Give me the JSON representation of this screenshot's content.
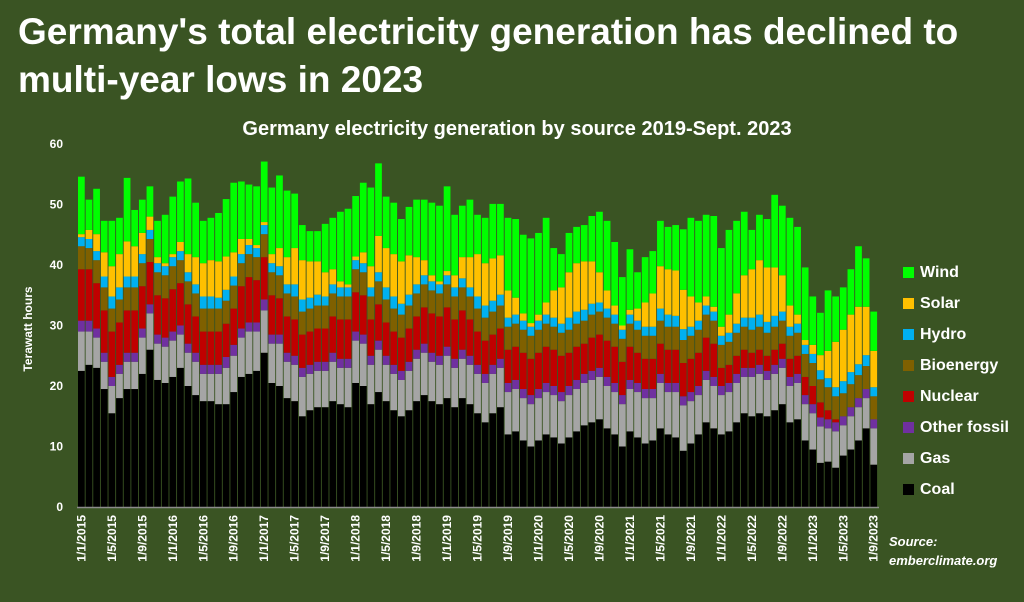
{
  "headline": "Germany's total electricity generation has declined to multi-year lows in 2023",
  "source": {
    "line1": "Source:",
    "line2": "emberclimate.org"
  },
  "chart_data": {
    "type": "bar",
    "stacked": true,
    "title": "Germany electricity generation by source 2019-Sept. 2023",
    "xlabel": "",
    "ylabel": "Terawatt hours",
    "ylim": [
      0,
      60
    ],
    "yticks": [
      0,
      10,
      20,
      30,
      40,
      50,
      60
    ],
    "xtick_labels": [
      "1/1/2015",
      "1/5/2015",
      "1/9/2015",
      "1/1/2016",
      "1/5/2016",
      "1/9/2016",
      "1/1/2017",
      "1/5/2017",
      "1/9/2017",
      "1/1/2018",
      "1/5/2018",
      "1/9/2018",
      "1/1/2019",
      "1/5/2019",
      "1/9/2019",
      "1/1/2020",
      "1/5/2020",
      "1/9/2020",
      "1/1/2021",
      "1/5/2021",
      "1/9/2021",
      "1/1/2022",
      "1/5/2022",
      "1/9/2022",
      "1/1/2023",
      "1/5/2023",
      "1/9/2023"
    ],
    "xtick_every": 4,
    "legend_position": "right",
    "grid": false,
    "start_month": "2015-01",
    "months": 105,
    "series": [
      {
        "name": "Coal",
        "color": "#000000",
        "values": [
          22.5,
          23.5,
          23,
          19.5,
          15.5,
          18,
          19.5,
          19.5,
          22,
          26,
          21,
          20.5,
          21.5,
          23,
          20,
          18.5,
          17.5,
          17.5,
          17,
          17,
          19,
          21.5,
          22,
          22.5,
          25.5,
          20.5,
          20,
          18,
          17.5,
          15,
          16,
          16.5,
          16.5,
          17.5,
          17,
          16.5,
          20.5,
          20,
          17,
          19,
          17.5,
          16,
          15,
          16,
          17.5,
          18.5,
          17.5,
          17,
          18,
          16.5,
          18,
          17,
          15.5,
          14,
          15.5,
          16.5,
          12,
          12.5,
          11,
          10,
          11,
          12,
          11.5,
          10.5,
          11.5,
          12.5,
          13.5,
          14,
          14.5,
          13,
          12,
          10,
          12.5,
          11.5,
          10.5,
          11,
          13,
          12,
          11.5,
          9.3,
          10.5,
          12,
          14,
          13,
          12,
          12.5,
          14,
          15.5,
          15,
          15.5,
          15,
          16,
          17,
          14,
          14.5,
          11,
          9.5,
          7.3,
          7.5,
          6.5,
          8.5,
          9.5,
          11,
          13,
          7
        ]
      },
      {
        "name": "Gas",
        "color": "#a5a5a5",
        "values": [
          6.5,
          5.5,
          5,
          4.5,
          4.5,
          4,
          4.5,
          4.5,
          6,
          6,
          6,
          6,
          6,
          5.5,
          5.5,
          5.5,
          4.5,
          4.5,
          5,
          6,
          6,
          6.5,
          7,
          6.5,
          7,
          6.5,
          7,
          6,
          6,
          6.5,
          6,
          6,
          6,
          6.5,
          6,
          6.5,
          7,
          7,
          6.5,
          7,
          6,
          6,
          6,
          6.5,
          7,
          7,
          6.5,
          6.5,
          7,
          6.5,
          6.5,
          6.5,
          6.5,
          6.5,
          6.5,
          6.5,
          7,
          7,
          7,
          7,
          7,
          7,
          7,
          7,
          7,
          7,
          7,
          7,
          7,
          7,
          7,
          7,
          7,
          7.5,
          7.5,
          7,
          7.5,
          7,
          7.5,
          7.5,
          7,
          6.5,
          7,
          7,
          6.5,
          6.5,
          6.5,
          6,
          6.5,
          6.5,
          6,
          6,
          6,
          6,
          6,
          6,
          6,
          6,
          5.5,
          6,
          5,
          5.5,
          5.5,
          5,
          6
        ]
      },
      {
        "name": "Other fossil",
        "color": "#7030a0",
        "values": [
          1.8,
          1.8,
          1.5,
          1.5,
          1.5,
          1.5,
          1.5,
          1.5,
          1.5,
          1.5,
          1.5,
          1.5,
          1.5,
          1.5,
          1.5,
          1.5,
          1.5,
          1.5,
          1.5,
          1.8,
          1.8,
          1.5,
          1.5,
          1.5,
          1.8,
          1.5,
          1.5,
          1.5,
          1.5,
          1.5,
          1.5,
          1.5,
          1.5,
          1.5,
          1.5,
          1.5,
          1.5,
          1.5,
          1.5,
          1.5,
          1.5,
          1.5,
          1.5,
          1.5,
          1.5,
          1.5,
          1.5,
          1.5,
          1.5,
          1.5,
          1.5,
          1.5,
          1.5,
          1.5,
          1.5,
          1.5,
          1.5,
          1.5,
          1.5,
          1.5,
          1.5,
          1.5,
          1.5,
          1.5,
          1.5,
          1.5,
          1.5,
          1.5,
          1.5,
          1.5,
          1.5,
          1.5,
          1.5,
          1.5,
          1.5,
          1.5,
          1.5,
          1.5,
          1.5,
          1.5,
          1.5,
          1.5,
          1.5,
          1.5,
          1.5,
          1.5,
          1.5,
          1.5,
          1.5,
          1.5,
          1.5,
          1.5,
          1.5,
          1.5,
          1.5,
          1.5,
          1.5,
          1.5,
          1.5,
          1.5,
          1.5,
          1.5,
          1.5,
          1.5,
          1.5
        ]
      },
      {
        "name": "Nuclear",
        "color": "#c00000",
        "values": [
          8.5,
          8.5,
          7.5,
          7,
          7.5,
          7,
          7,
          7,
          7,
          7,
          6.5,
          6.5,
          7,
          7,
          6.5,
          6,
          5.5,
          5.5,
          5.5,
          5.5,
          6,
          7,
          7.5,
          7,
          7,
          6.5,
          6,
          6,
          6,
          5.5,
          5.5,
          5.5,
          5.5,
          6,
          6.5,
          6.5,
          6.5,
          6.5,
          6,
          6,
          5.5,
          5.5,
          5.5,
          5.5,
          5.5,
          6,
          6.5,
          6.5,
          6.5,
          6.5,
          6.5,
          6,
          5.5,
          5.5,
          5,
          5,
          5.5,
          5.5,
          6,
          6,
          6,
          6,
          6,
          6,
          5.5,
          5.5,
          5,
          5.5,
          5.5,
          6,
          6,
          5.5,
          5.5,
          5,
          5,
          5,
          5,
          5.5,
          5.5,
          5.5,
          5.5,
          5.5,
          5.5,
          5.5,
          3,
          3,
          3,
          3,
          2.5,
          2.5,
          2.5,
          2.5,
          2.5,
          3,
          3,
          3,
          3,
          2.5,
          1.5,
          0.5,
          0,
          0,
          0,
          0,
          0
        ]
      },
      {
        "name": "Bioenergy",
        "color": "#7f6000",
        "values": [
          3.8,
          3.5,
          3.8,
          3.8,
          3.8,
          3.8,
          3.8,
          3.8,
          3.8,
          3.8,
          3.8,
          3.8,
          3.8,
          3.8,
          3.8,
          3.8,
          3.8,
          3.8,
          3.8,
          3.8,
          3.8,
          3.8,
          3.8,
          3.8,
          3.8,
          3.8,
          3.8,
          3.8,
          3.8,
          3.8,
          3.8,
          3.8,
          3.8,
          3.8,
          3.8,
          3.8,
          3.8,
          3.8,
          3.8,
          3.8,
          3.8,
          3.8,
          3.8,
          3.8,
          3.8,
          3.8,
          3.8,
          3.8,
          3.8,
          3.8,
          3.8,
          3.8,
          3.8,
          3.8,
          3.8,
          3.8,
          3.8,
          3.8,
          3.8,
          3.8,
          3.8,
          3.8,
          3.8,
          3.8,
          3.8,
          3.8,
          3.8,
          3.8,
          3.8,
          3.8,
          3.8,
          3.8,
          3.8,
          3.8,
          3.8,
          3.8,
          3.8,
          3.8,
          3.8,
          3.8,
          3.8,
          3.8,
          3.8,
          3.8,
          3.8,
          3.8,
          3.8,
          3.8,
          3.8,
          3.8,
          3.8,
          3.8,
          3.8,
          3.8,
          3.8,
          3.8,
          3.8,
          3.8,
          3.8,
          3.8,
          3.8,
          3.8,
          3.8,
          3.8,
          3.8
        ]
      },
      {
        "name": "Hydro",
        "color": "#00b0f0",
        "values": [
          1.5,
          1.5,
          1.5,
          1.8,
          2,
          2,
          1.8,
          1.8,
          1.5,
          1.5,
          1.5,
          1.5,
          1.5,
          1.5,
          1.5,
          1.5,
          2,
          2,
          1.8,
          1.8,
          1.5,
          1.5,
          1.5,
          1.5,
          1.5,
          1.5,
          1.5,
          1.5,
          2,
          2,
          1.8,
          1.8,
          1.5,
          1.5,
          1.5,
          1.5,
          1.5,
          1.5,
          1.5,
          1.5,
          2,
          2,
          1.8,
          1.8,
          1.5,
          1.5,
          1.5,
          1.5,
          1.5,
          1.5,
          1.5,
          1.5,
          2,
          2,
          1.8,
          1.8,
          1.5,
          1.5,
          1.5,
          1.5,
          1.5,
          1.5,
          1.5,
          1.5,
          2,
          2,
          1.8,
          1.8,
          1.5,
          1.5,
          1.5,
          1.5,
          1.5,
          1.5,
          1.5,
          1.5,
          2,
          2,
          1.8,
          1.8,
          1.5,
          1.5,
          1.5,
          1.5,
          1.5,
          1.5,
          1.5,
          1.5,
          2,
          2,
          1.8,
          1.8,
          1.5,
          1.5,
          1.5,
          1.5,
          1.5,
          1.5,
          1.5,
          1.5,
          2,
          2,
          1.8,
          1.8,
          1.5
        ]
      },
      {
        "name": "Solar",
        "color": "#ffc000",
        "values": [
          0.5,
          1.5,
          2.8,
          4,
          5,
          5.5,
          5.8,
          5,
          3.5,
          2.2,
          1,
          0.5,
          0.5,
          1.5,
          3,
          4.5,
          5.5,
          6,
          6,
          5.5,
          4,
          2.5,
          1,
          0.5,
          0.5,
          1.5,
          3,
          4.5,
          6,
          6.5,
          6,
          5.5,
          4,
          2.5,
          1,
          0.5,
          0.6,
          1.8,
          3.5,
          6,
          6.5,
          7,
          7,
          6.5,
          4.5,
          2.5,
          1,
          0.5,
          0.7,
          2,
          3.5,
          5,
          7,
          7,
          7,
          6.5,
          4.5,
          2.8,
          1.2,
          0.6,
          1,
          2,
          4.5,
          6,
          7.5,
          8,
          8,
          7,
          5,
          3,
          1.5,
          0.7,
          0.8,
          2,
          4,
          5.5,
          7,
          7.5,
          7.5,
          6.5,
          5,
          3,
          1.5,
          0.8,
          1.5,
          3,
          5,
          7,
          8,
          9,
          9,
          8,
          6,
          3.5,
          1.5,
          0.8,
          1.5,
          2.5,
          4.5,
          7.5,
          8.5,
          9.5,
          9.5,
          8,
          6
        ]
      },
      {
        "name": "Wind",
        "color": "#00ff00",
        "values": [
          9.5,
          5,
          7.5,
          5.2,
          7.5,
          6,
          10.5,
          6,
          5.5,
          5,
          6,
          8,
          9.5,
          10,
          12.5,
          9,
          7,
          7,
          8,
          9.5,
          11.5,
          9.5,
          9,
          9.7,
          10,
          11,
          12,
          11,
          9,
          5.8,
          5,
          5,
          8,
          8.5,
          11.5,
          12.5,
          10,
          11.5,
          13,
          12,
          8.5,
          8.5,
          7,
          8,
          9.5,
          10,
          12,
          12.5,
          14,
          10,
          8.5,
          9.5,
          6.5,
          7.5,
          9,
          8.5,
          12,
          13,
          13,
          14,
          13.5,
          14,
          7,
          5.5,
          6.5,
          6,
          6,
          7.5,
          10,
          11.5,
          10.5,
          8,
          10,
          6,
          7.5,
          7,
          7.5,
          7,
          7.5,
          10,
          13,
          13.5,
          13.5,
          15,
          13,
          14,
          12,
          10.5,
          6.5,
          7.5,
          8,
          12,
          11.5,
          14.5,
          14.5,
          12,
          8,
          7,
          10,
          7.5,
          7,
          7.5,
          10,
          8,
          6.5
        ]
      }
    ]
  }
}
